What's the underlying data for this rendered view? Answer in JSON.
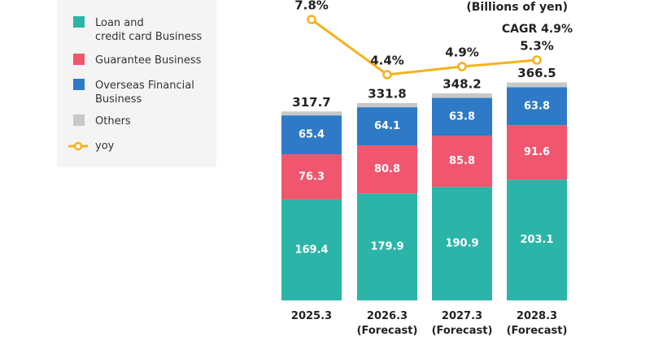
{
  "chart_data": {
    "type": "bar",
    "stacked": true,
    "unit_note": "(Billions of yen)",
    "annotation": "CAGR 4.9%",
    "categories": [
      "2025.3",
      "2026.3\n(Forecast)",
      "2027.3\n(Forecast)",
      "2028.3\n(Forecast)"
    ],
    "series": [
      {
        "name": "Loan and\ncredit card Business",
        "color": "#2bb5a8",
        "values": [
          169.4,
          179.9,
          190.9,
          203.1
        ]
      },
      {
        "name": "Guarantee Business",
        "color": "#f0566e",
        "values": [
          76.3,
          80.8,
          85.8,
          91.6
        ]
      },
      {
        "name": "Overseas Financial\nBusiness",
        "color": "#2e7ac6",
        "values": [
          65.4,
          64.1,
          63.8,
          63.8
        ]
      },
      {
        "name": "Others",
        "color": "#c8c8c8",
        "values": [
          6.6,
          7.0,
          7.7,
          8.0
        ]
      },
      {
        "name": "yoy",
        "color": "#f5b21b",
        "type": "line",
        "axis": "y2",
        "values": [
          7.8,
          4.4,
          4.9,
          5.3
        ],
        "value_labels": [
          "7.8%",
          "4.4%",
          "4.9%",
          "5.3%"
        ]
      }
    ],
    "totals": [
      317.7,
      331.8,
      348.2,
      366.5
    ],
    "ylim": [
      0,
      400
    ],
    "y2lim": [
      0,
      9
    ],
    "legend": "top-left",
    "grid": false
  }
}
